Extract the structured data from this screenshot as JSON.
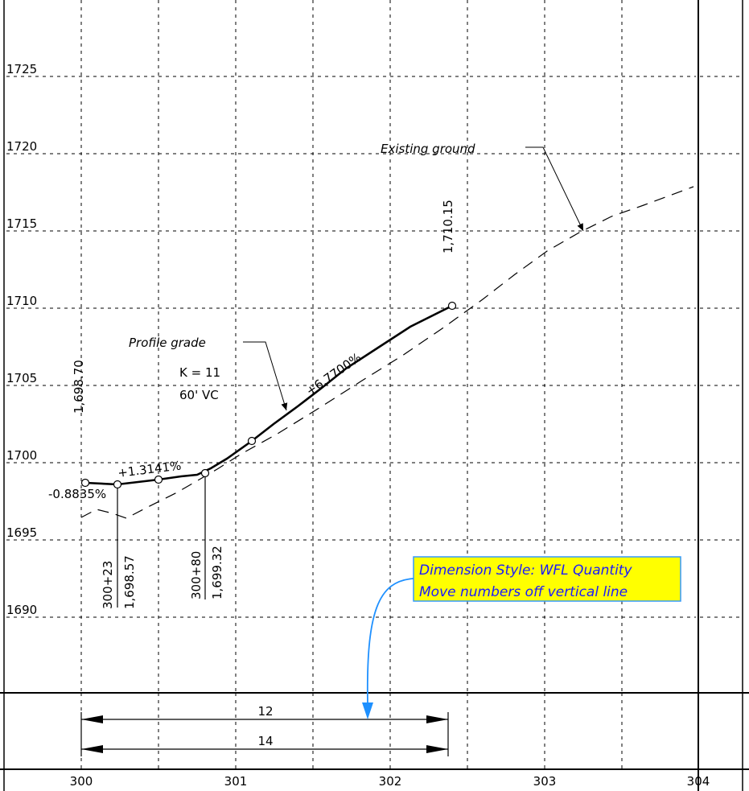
{
  "elevation_labels": [
    "1725",
    "1720",
    "1715",
    "1710",
    "1705",
    "1700",
    "1695",
    "1690"
  ],
  "station_labels": [
    "300",
    "301",
    "302",
    "303",
    "304"
  ],
  "grade_in": "-0.8835%",
  "grade_mid": "+1.3141%",
  "grade_out": "+6.7700%",
  "profile_grade_label": "Profile grade",
  "existing_ground_label": "Existing ground",
  "curve_k": "K = 11",
  "curve_vc": "60' VC",
  "elevation_begin": "1,698.70",
  "elevation_end": "1,710.15",
  "pvc_station": "300+23",
  "pvc_elevation": "1,698.57",
  "pvi_station": "300+80",
  "pvi_elevation": "1,699.32",
  "quantity_top": "12",
  "quantity_bottom": "14",
  "note": {
    "line1": "Dimension Style: WFL Quantity",
    "line2": "Move numbers off vertical line"
  },
  "colors": {
    "note_fill": "#ffff00",
    "note_border": "#3399ff",
    "note_text": "#1a1aff",
    "leader": "#1e90ff"
  }
}
